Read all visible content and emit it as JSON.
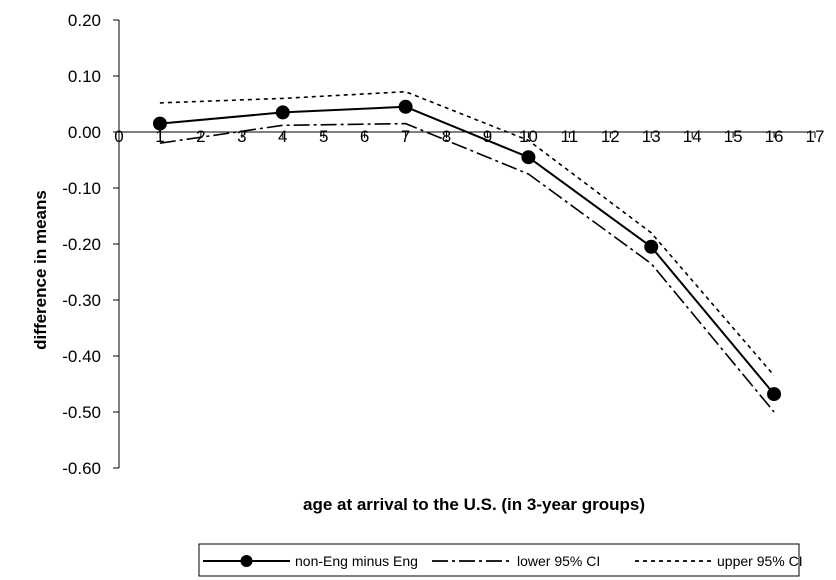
{
  "chart_data": {
    "type": "line",
    "title": "",
    "xlabel": "age at arrival to the U.S. (in 3-year groups)",
    "ylabel": "difference in means",
    "xlim": [
      0,
      17
    ],
    "ylim": [
      -0.6,
      0.2
    ],
    "x_ticks": [
      "0",
      "1",
      "2",
      "3",
      "4",
      "5",
      "6",
      "7",
      "8",
      "9",
      "10",
      "11",
      "12",
      "13",
      "14",
      "15",
      "16",
      "17"
    ],
    "y_ticks": [
      "0.20",
      "0.10",
      "0.00",
      "-0.10",
      "-0.20",
      "-0.30",
      "-0.40",
      "-0.50",
      "-0.60"
    ],
    "grid": false,
    "legend_position": "bottom",
    "x": [
      1,
      4,
      7,
      10,
      13,
      16
    ],
    "series": [
      {
        "name": "non-Eng minus Eng",
        "values": [
          0.015,
          0.035,
          0.045,
          -0.045,
          -0.205,
          -0.468
        ],
        "style": "solid",
        "marker": "circle",
        "color": "#000000"
      },
      {
        "name": "lower 95% CI",
        "values": [
          -0.02,
          0.012,
          0.015,
          -0.075,
          -0.235,
          -0.5
        ],
        "style": "dash-dot",
        "marker": "none",
        "color": "#000000"
      },
      {
        "name": "upper 95% CI",
        "values": [
          0.052,
          0.06,
          0.072,
          -0.015,
          -0.18,
          -0.435
        ],
        "style": "dotted",
        "marker": "none",
        "color": "#000000"
      }
    ]
  }
}
